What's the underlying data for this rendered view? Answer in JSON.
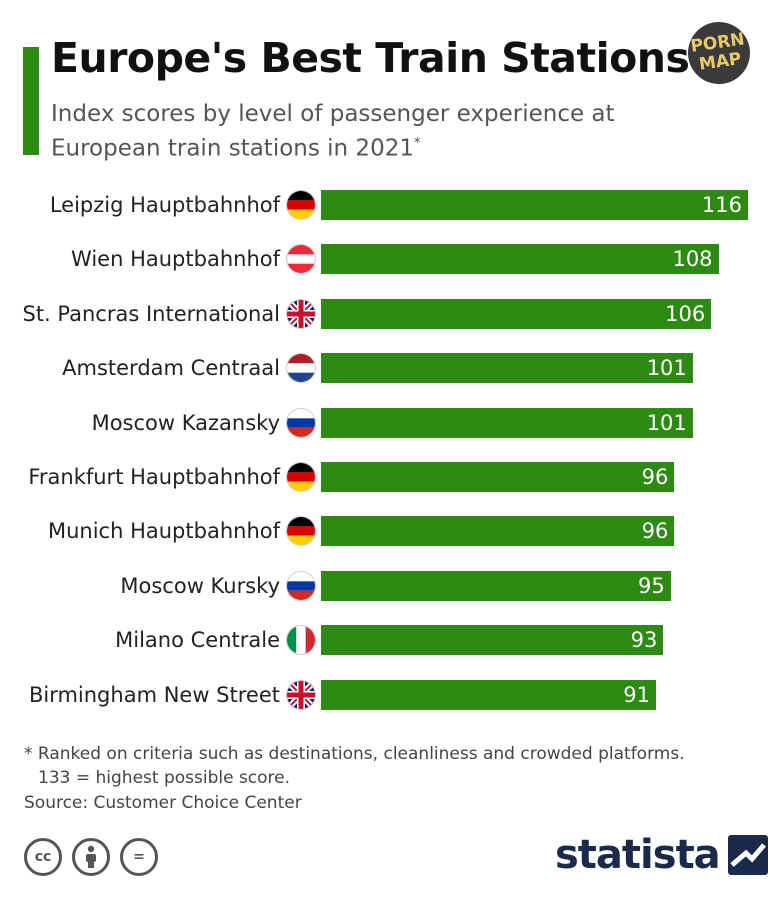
{
  "header": {
    "title": "Europe's Best Train Stations",
    "subtitle": "Index scores by level of passenger experience at European train stations in 2021",
    "subtitle_mark": "*",
    "badge_line1": "PORN",
    "badge_line2": "MAP"
  },
  "chart_data": {
    "type": "bar",
    "orientation": "horizontal",
    "title": "Europe's Best Train Stations",
    "subtitle": "Index scores by level of passenger experience at European train stations in 2021",
    "xlabel": "",
    "ylabel": "",
    "xlim": [
      0,
      116
    ],
    "grid": false,
    "legend": "none",
    "bar_color": "#2d8a12",
    "categories": [
      "Leipzig Hauptbahnhof",
      "Wien Hauptbahnhof",
      "St. Pancras International",
      "Amsterdam Centraal",
      "Moscow Kazansky",
      "Frankfurt Hauptbahnhof",
      "Munich Hauptbahnhof",
      "Moscow Kursky",
      "Milano Centrale",
      "Birmingham New Street"
    ],
    "values": [
      116,
      108,
      106,
      101,
      101,
      96,
      96,
      95,
      93,
      91
    ],
    "flags": [
      "germany-flag-icon",
      "austria-flag-icon",
      "uk-flag-icon",
      "netherlands-flag-icon",
      "russia-flag-icon",
      "germany-flag-icon",
      "germany-flag-icon",
      "russia-flag-icon",
      "italy-flag-icon",
      "uk-flag-icon"
    ]
  },
  "footer": {
    "footnote_line1": "* Ranked on criteria such as destinations, cleanliness and crowded platforms.",
    "footnote_line2": "133 = highest possible score.",
    "source": "Source: Customer Choice Center",
    "brand": "statista",
    "cc_label": "cc",
    "nd_label": "="
  }
}
